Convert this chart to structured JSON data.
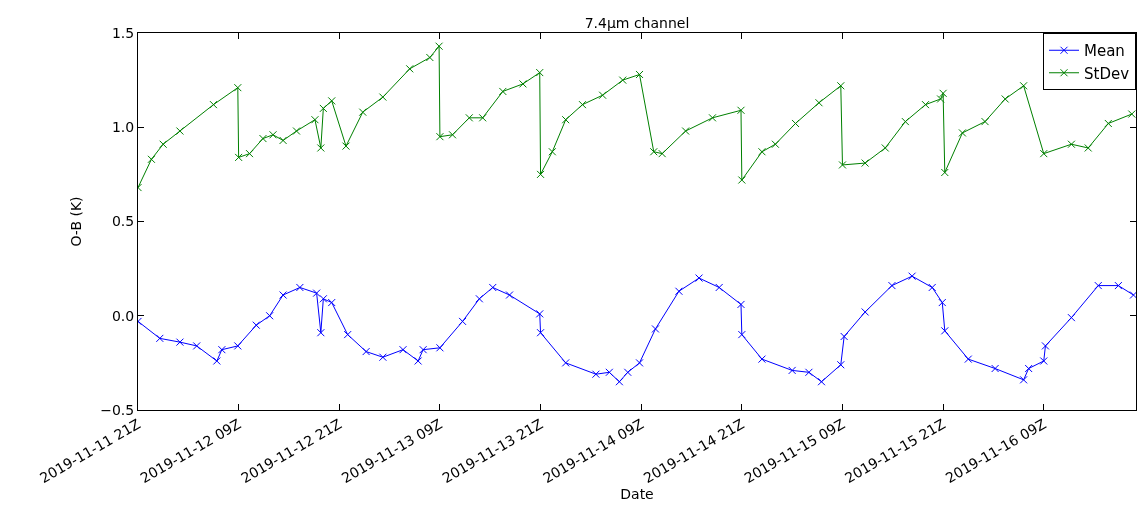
{
  "chart_data": {
    "type": "line",
    "title": "7.4μm channel",
    "xlabel": "Date",
    "ylabel": "O-B (K)",
    "xlim": [
      "2019-11-11T21:00",
      "2019-11-16T20:00"
    ],
    "xticks": [
      {
        "value": "2019-11-11T21:00",
        "label": "2019-11-11 21Z"
      },
      {
        "value": "2019-11-12T09:00",
        "label": "2019-11-12 09Z"
      },
      {
        "value": "2019-11-12T21:00",
        "label": "2019-11-12 21Z"
      },
      {
        "value": "2019-11-13T09:00",
        "label": "2019-11-13 09Z"
      },
      {
        "value": "2019-11-13T21:00",
        "label": "2019-11-13 21Z"
      },
      {
        "value": "2019-11-14T09:00",
        "label": "2019-11-14 09Z"
      },
      {
        "value": "2019-11-14T21:00",
        "label": "2019-11-14 21Z"
      },
      {
        "value": "2019-11-15T09:00",
        "label": "2019-11-15 09Z"
      },
      {
        "value": "2019-11-15T21:00",
        "label": "2019-11-15 21Z"
      },
      {
        "value": "2019-11-16T09:00",
        "label": "2019-11-16 09Z"
      }
    ],
    "ylim": [
      -0.5,
      1.5
    ],
    "yticks": [
      {
        "value": -0.5,
        "label": "−0.5"
      },
      {
        "value": 0,
        "label": "0.0"
      },
      {
        "value": 0.5,
        "label": "0.5"
      },
      {
        "value": 1,
        "label": "1.0"
      },
      {
        "value": 1.5,
        "label": "1.5"
      }
    ],
    "marker": "cross",
    "line_style": "solid",
    "legend": "top right",
    "series": [
      {
        "name": "Mean",
        "color": "#0000ff",
        "x": [
          "2019-11-11T21:00",
          "2019-11-11T23:36",
          "2019-11-12T02:00",
          "2019-11-12T04:00",
          "2019-11-12T06:24",
          "2019-11-12T07:00",
          "2019-11-12T08:54",
          "2019-11-12T11:06",
          "2019-11-12T12:42",
          "2019-11-12T14:18",
          "2019-11-12T16:18",
          "2019-11-12T18:18",
          "2019-11-12T18:48",
          "2019-11-12T19:06",
          "2019-11-12T20:06",
          "2019-11-12T22:00",
          "2019-11-13T00:12",
          "2019-11-13T02:12",
          "2019-11-13T04:36",
          "2019-11-13T06:24",
          "2019-11-13T07:00",
          "2019-11-13T09:00",
          "2019-11-13T11:42",
          "2019-11-13T13:42",
          "2019-11-13T15:18",
          "2019-11-13T17:18",
          "2019-11-13T20:54",
          "2019-11-13T21:00",
          "2019-11-14T00:00",
          "2019-11-14T03:36",
          "2019-11-14T05:12",
          "2019-11-14T06:24",
          "2019-11-14T07:24",
          "2019-11-14T08:48",
          "2019-11-14T10:42",
          "2019-11-14T13:30",
          "2019-11-14T15:54",
          "2019-11-14T18:18",
          "2019-11-14T20:54",
          "2019-11-14T21:00",
          "2019-11-14T23:24",
          "2019-11-15T03:00",
          "2019-11-15T05:00",
          "2019-11-15T06:30",
          "2019-11-15T08:48",
          "2019-11-15T09:12",
          "2019-11-15T11:42",
          "2019-11-15T14:54",
          "2019-11-15T17:18",
          "2019-11-15T19:42",
          "2019-11-15T20:54",
          "2019-11-15T21:12",
          "2019-11-16T00:00",
          "2019-11-16T03:12",
          "2019-11-16T06:36",
          "2019-11-16T07:12",
          "2019-11-16T09:00",
          "2019-11-16T09:12",
          "2019-11-16T12:18",
          "2019-11-16T15:30",
          "2019-11-16T17:54",
          "2019-11-16T19:42"
        ],
        "values": [
          -0.03,
          -0.12,
          -0.14,
          -0.16,
          -0.24,
          -0.18,
          -0.16,
          -0.05,
          0.0,
          0.11,
          0.15,
          0.12,
          -0.09,
          0.09,
          0.07,
          -0.1,
          -0.19,
          -0.22,
          -0.18,
          -0.24,
          -0.18,
          -0.17,
          -0.03,
          0.09,
          0.15,
          0.11,
          0.01,
          -0.09,
          -0.25,
          -0.31,
          -0.3,
          -0.35,
          -0.3,
          -0.25,
          -0.07,
          0.13,
          0.2,
          0.15,
          0.06,
          -0.1,
          -0.23,
          -0.29,
          -0.3,
          -0.35,
          -0.26,
          -0.11,
          0.02,
          0.16,
          0.21,
          0.15,
          0.07,
          -0.08,
          -0.23,
          -0.28,
          -0.34,
          -0.28,
          -0.24,
          -0.16,
          -0.01,
          0.16,
          0.16,
          0.11
        ]
      },
      {
        "name": "StDev",
        "color": "#008000",
        "x": [
          "2019-11-11T21:00",
          "2019-11-11T22:36",
          "2019-11-12T00:00",
          "2019-11-12T02:00",
          "2019-11-12T06:00",
          "2019-11-12T08:54",
          "2019-11-12T09:00",
          "2019-11-12T10:18",
          "2019-11-12T11:54",
          "2019-11-12T13:06",
          "2019-11-12T14:18",
          "2019-11-12T15:54",
          "2019-11-12T18:06",
          "2019-11-12T18:48",
          "2019-11-12T19:06",
          "2019-11-12T20:06",
          "2019-11-12T21:48",
          "2019-11-12T23:48",
          "2019-11-13T02:12",
          "2019-11-13T05:24",
          "2019-11-13T07:48",
          "2019-11-13T08:54",
          "2019-11-13T09:00",
          "2019-11-13T10:30",
          "2019-11-13T12:30",
          "2019-11-13T14:06",
          "2019-11-13T16:30",
          "2019-11-13T18:54",
          "2019-11-13T20:54",
          "2019-11-13T21:00",
          "2019-11-13T22:24",
          "2019-11-14T00:00",
          "2019-11-14T02:00",
          "2019-11-14T04:24",
          "2019-11-14T06:48",
          "2019-11-14T08:48",
          "2019-11-14T10:30",
          "2019-11-14T11:30",
          "2019-11-14T14:18",
          "2019-11-14T17:30",
          "2019-11-14T20:54",
          "2019-11-14T21:00",
          "2019-11-14T23:24",
          "2019-11-15T01:00",
          "2019-11-15T03:24",
          "2019-11-15T06:12",
          "2019-11-15T08:48",
          "2019-11-15T09:00",
          "2019-11-15T11:42",
          "2019-11-15T14:06",
          "2019-11-15T16:30",
          "2019-11-15T18:54",
          "2019-11-15T20:42",
          "2019-11-15T21:00",
          "2019-11-15T21:12",
          "2019-11-15T23:18",
          "2019-11-16T02:00",
          "2019-11-16T04:24",
          "2019-11-16T06:36",
          "2019-11-16T09:00",
          "2019-11-16T12:18",
          "2019-11-16T14:18",
          "2019-11-16T16:42",
          "2019-11-16T19:30"
        ],
        "values": [
          0.68,
          0.83,
          0.91,
          0.98,
          1.12,
          1.21,
          0.84,
          0.86,
          0.94,
          0.96,
          0.93,
          0.98,
          1.04,
          0.89,
          1.1,
          1.14,
          0.9,
          1.08,
          1.16,
          1.31,
          1.37,
          1.43,
          0.95,
          0.96,
          1.05,
          1.05,
          1.19,
          1.23,
          1.29,
          0.75,
          0.87,
          1.04,
          1.12,
          1.17,
          1.25,
          1.28,
          0.87,
          0.86,
          0.98,
          1.05,
          1.09,
          0.72,
          0.87,
          0.91,
          1.02,
          1.13,
          1.22,
          0.8,
          0.81,
          0.89,
          1.03,
          1.12,
          1.15,
          1.18,
          0.76,
          0.97,
          1.03,
          1.15,
          1.22,
          0.86,
          0.91,
          0.89,
          1.02,
          1.07
        ]
      }
    ]
  }
}
